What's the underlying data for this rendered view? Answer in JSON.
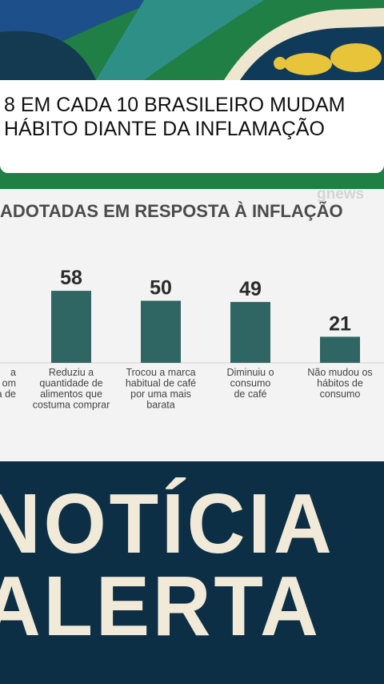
{
  "headline": {
    "line1": "8 EM CADA 10 BRASILEIRO MUDAM",
    "line2": "HÁBITO DIANTE DA INFLAMAÇÃO"
  },
  "brand": {
    "logo_text": "gnews"
  },
  "chart_data": {
    "type": "bar",
    "title": "ADOTADAS EM RESPOSTA À INFLAÇÃO",
    "categories": [
      "a\nom\na de",
      "Reduziu a\nquantidade de\nalimentos que\ncostuma comprar",
      "Trocou a marca\nhabitual de café\npor uma mais\nbarata",
      "Diminuiu o\nconsumo\nde café",
      "Não mudou os\nhábitos de\nconsumo"
    ],
    "values": [
      null,
      58,
      50,
      49,
      21
    ],
    "bar_color": "#2f6663",
    "xlabel": "",
    "ylabel": ""
  },
  "banner": {
    "word1": "NOTÍCIA",
    "word2": "ALERTA"
  },
  "colors": {
    "top_green": "#1f7f45",
    "top_blue": "#1d4f8a",
    "navy": "#0d2f45",
    "yellow": "#e8c43a",
    "cream": "#f1ead8",
    "panel": "#f3f3f3"
  }
}
